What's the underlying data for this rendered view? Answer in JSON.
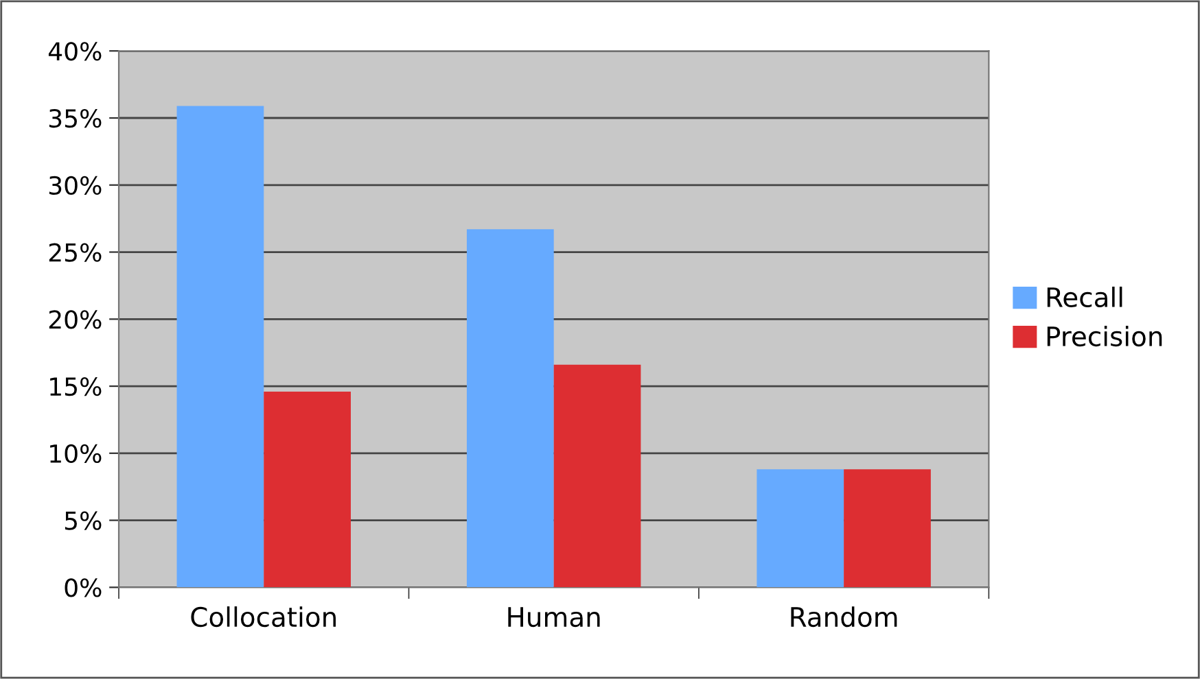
{
  "chart_data": {
    "type": "bar",
    "categories": [
      "Collocation",
      "Human",
      "Random"
    ],
    "series": [
      {
        "name": "Recall",
        "color": "#66aaff",
        "values": [
          35.9,
          26.7,
          8.8
        ]
      },
      {
        "name": "Precision",
        "color": "#dd2e32",
        "values": [
          14.6,
          16.6,
          8.8
        ]
      }
    ],
    "ylim": [
      0,
      40
    ],
    "yticks": [
      {
        "value": 0,
        "label": "0%"
      },
      {
        "value": 5,
        "label": "5%"
      },
      {
        "value": 10,
        "label": "10%"
      },
      {
        "value": 15,
        "label": "15%"
      },
      {
        "value": 20,
        "label": "20%"
      },
      {
        "value": 25,
        "label": "25%"
      },
      {
        "value": 30,
        "label": "30%"
      },
      {
        "value": 35,
        "label": "35%"
      },
      {
        "value": 40,
        "label": "40%"
      }
    ],
    "grid": "y",
    "legend": "right"
  }
}
